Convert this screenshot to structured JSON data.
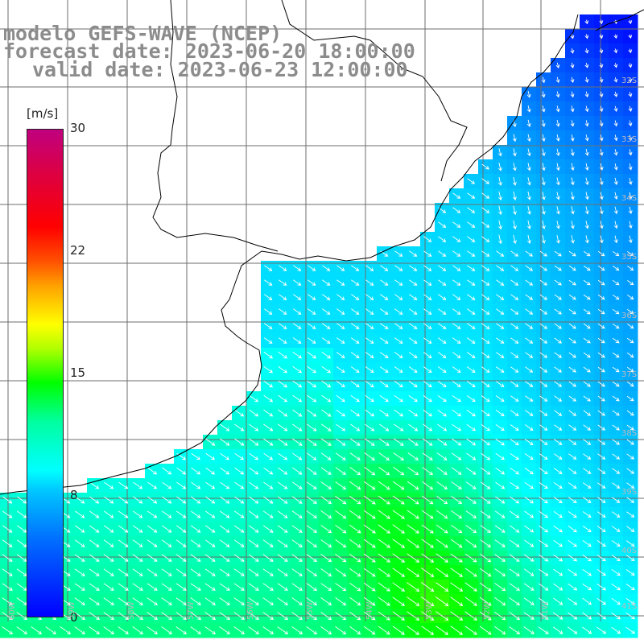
{
  "title": {
    "line1": "modelo GEFS-WAVE (NCEP)",
    "line2": "forecast date: 2023-06-20 18:00:00",
    "line3": "valid date: 2023-06-23 12:00:00"
  },
  "colorbar": {
    "unit": "[m/s]",
    "ticks": [
      "30",
      "22",
      "15",
      "8",
      "0"
    ],
    "tick_values": [
      30,
      22,
      15,
      8,
      0
    ]
  },
  "lat_labels": [
    "32S",
    "33S",
    "34S",
    "35S",
    "36S",
    "37S",
    "38S",
    "39S",
    "40S",
    "41S"
  ],
  "lon_labels": [
    "60W",
    "59W",
    "58W",
    "57W",
    "56W",
    "55W",
    "54W",
    "53W",
    "52W",
    "51W"
  ],
  "colors": {
    "land": "#ffffff",
    "grid": "#6e6e6e",
    "coast": "#000000",
    "arrow": "#ffffff",
    "title": "#8c8c8c"
  },
  "field": {
    "variable": "wind speed",
    "arrow_direction": "toward southeast"
  }
}
